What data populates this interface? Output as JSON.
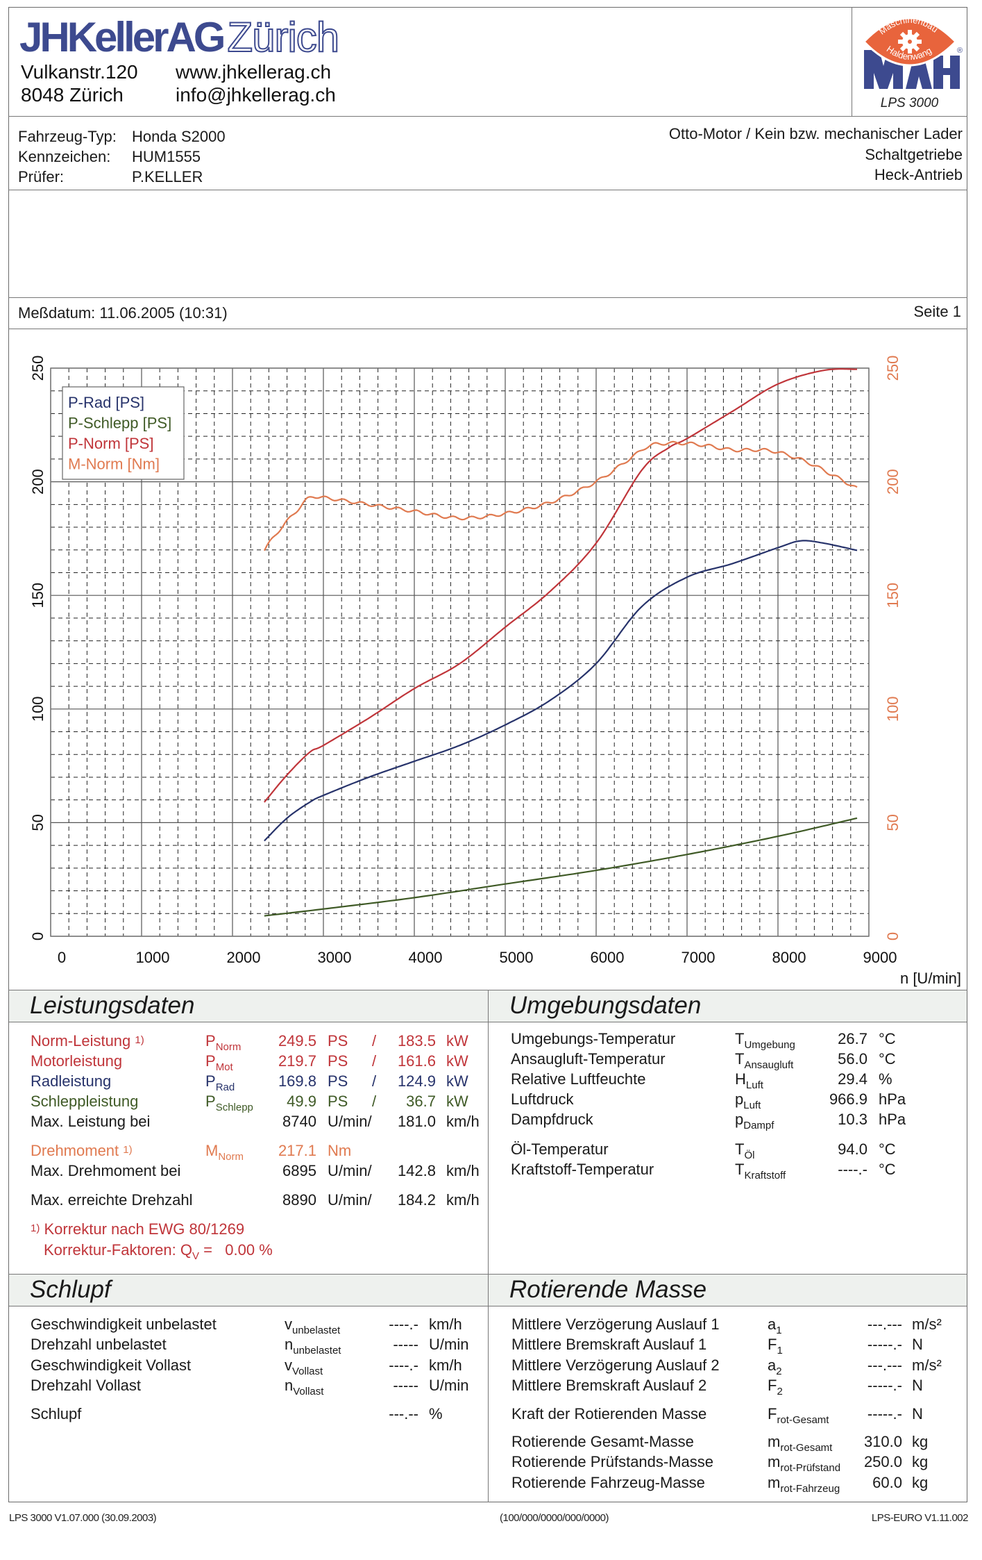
{
  "header": {
    "company_bold": "JHKellerAG",
    "company_outline": "Zürich",
    "street": "Vulkanstr.120",
    "city": "8048 Zürich",
    "website": "www.jhkellerag.ch",
    "email": "info@jhkellerag.ch",
    "maha_ring_top": "Maschinenbau",
    "maha_ring_bottom": "Haldenwang",
    "maha_brand": "MAHA",
    "maha_registered": "®",
    "maha_model": "LPS 3000"
  },
  "vehicle": {
    "type_label": "Fahrzeug-Typ:",
    "type_value": "Honda S2000",
    "plate_label": "Kennzeichen:",
    "plate_value": "HUM1555",
    "examiner_label": "Prüfer:",
    "examiner_value": "P.KELLER",
    "engine": "Otto-Motor / Kein bzw. mechanischer Lader",
    "gearbox": "Schaltgetriebe",
    "drive": "Heck-Antrieb"
  },
  "measurement": {
    "date": "Meßdatum: 11.06.2005 (10:31)",
    "page": "Seite 1"
  },
  "colors": {
    "p_rad": "#27336b",
    "p_schlepp": "#3f5a26",
    "p_norm": "#c0353a",
    "m_norm": "#e07a50",
    "section_bg": "#eef1ee",
    "logo_blue": "#3d4a8f",
    "logo_orange": "#e8643c"
  },
  "chart_data": {
    "type": "line",
    "title": "",
    "xlabel": "n [U/min]",
    "ylabel_left": "PS",
    "ylabel_right": "Nm",
    "xlim": [
      0,
      9000
    ],
    "ylim_left": [
      0,
      250
    ],
    "ylim_right": [
      0,
      250
    ],
    "x_ticks": [
      0,
      1000,
      2000,
      3000,
      4000,
      5000,
      6000,
      7000,
      8000,
      9000
    ],
    "y_ticks_left": [
      0,
      50,
      100,
      150,
      200,
      250
    ],
    "y_ticks_right": [
      0,
      50,
      100,
      150,
      200,
      250
    ],
    "grid": true,
    "legend_position": "top-left",
    "series": [
      {
        "name": "P-Rad [PS]",
        "axis": "left",
        "x": [
          2350,
          2600,
          2850,
          3000,
          3500,
          4000,
          4500,
          5000,
          5500,
          6000,
          6500,
          7000,
          7500,
          8000,
          8250,
          8500,
          8870
        ],
        "values": [
          42,
          52,
          59,
          62,
          70,
          77,
          84,
          93,
          104,
          120,
          145,
          158,
          164,
          171,
          174,
          173,
          169.8
        ]
      },
      {
        "name": "P-Schlepp [PS]",
        "axis": "left",
        "x": [
          2350,
          3000,
          4000,
          5000,
          6000,
          7000,
          8000,
          8870
        ],
        "values": [
          9,
          12,
          17,
          23,
          29,
          36,
          44,
          52
        ]
      },
      {
        "name": "P-Norm [PS]",
        "axis": "left",
        "x": [
          2350,
          2600,
          2850,
          3000,
          3500,
          4000,
          4500,
          5000,
          5500,
          6000,
          6500,
          6800,
          7000,
          7500,
          8000,
          8500,
          8870
        ],
        "values": [
          59,
          71,
          81,
          84,
          96,
          109,
          120,
          136,
          152,
          173,
          205,
          215,
          219,
          231,
          243,
          249,
          249.5
        ]
      },
      {
        "name": "M-Norm [Nm]",
        "axis": "right",
        "x": [
          2350,
          2500,
          2700,
          2850,
          3000,
          3500,
          4000,
          4500,
          5000,
          5500,
          6000,
          6400,
          6600,
          6900,
          7200,
          7500,
          7800,
          8000,
          8300,
          8600,
          8870
        ],
        "values": [
          170,
          178,
          187,
          193,
          193,
          190,
          187,
          184,
          186,
          191,
          200,
          211,
          216,
          217,
          216,
          214,
          214,
          213,
          209,
          203,
          197
        ]
      }
    ]
  },
  "leistungsdaten": {
    "title": "Leistungsdaten",
    "rows": [
      {
        "label": "Norm-Leistung",
        "fn": "1)",
        "sym": "P",
        "sub": "Norm",
        "v1": "249.5",
        "u1": "PS",
        "sep": "/",
        "v2": "183.5",
        "u2": "kW",
        "color": "red"
      },
      {
        "label": "Motorleistung",
        "fn": "",
        "sym": "P",
        "sub": "Mot",
        "v1": "219.7",
        "u1": "PS",
        "sep": "/",
        "v2": "161.6",
        "u2": "kW",
        "color": "red"
      },
      {
        "label": "Radleistung",
        "fn": "",
        "sym": "P",
        "sub": "Rad",
        "v1": "169.8",
        "u1": "PS",
        "sep": "/",
        "v2": "124.9",
        "u2": "kW",
        "color": "blue"
      },
      {
        "label": "Schleppleistung",
        "fn": "",
        "sym": "P",
        "sub": "Schlepp",
        "v1": "49.9",
        "u1": "PS",
        "sep": "/",
        "v2": "36.7",
        "u2": "kW",
        "color": "green"
      },
      {
        "label": "Max. Leistung bei",
        "fn": "",
        "sym": "",
        "sub": "",
        "v1": "8740",
        "u1": "U/min/",
        "sep": "",
        "v2": "181.0",
        "u2": "km/h",
        "color": "black"
      },
      {
        "label": "Drehmoment",
        "fn": "1)",
        "sym": "M",
        "sub": "Norm",
        "v1": "217.1",
        "u1": "Nm",
        "sep": "",
        "v2": "",
        "u2": "",
        "color": "orange"
      },
      {
        "label": "Max. Drehmoment bei",
        "fn": "",
        "sym": "",
        "sub": "",
        "v1": "6895",
        "u1": "U/min/",
        "sep": "",
        "v2": "142.8",
        "u2": "km/h",
        "color": "black"
      },
      {
        "label": "Max. erreichte Drehzahl",
        "fn": "",
        "sym": "",
        "sub": "",
        "v1": "8890",
        "u1": "U/min/",
        "sep": "",
        "v2": "184.2",
        "u2": "km/h",
        "color": "black"
      }
    ],
    "footnote_marker": "1)",
    "footnote_text": "Korrektur nach EWG 80/1269",
    "correction_label": "Korrektur-Faktoren: Q",
    "correction_sub": "V",
    "correction_eq": " =",
    "correction_value": "0.00 %"
  },
  "umgebungsdaten": {
    "title": "Umgebungsdaten",
    "rows": [
      {
        "label": "Umgebungs-Temperatur",
        "sym": "T",
        "sub": "Umgebung",
        "value": "26.7",
        "unit": "°C"
      },
      {
        "label": "Ansaugluft-Temperatur",
        "sym": "T",
        "sub": "Ansaugluft",
        "value": "56.0",
        "unit": "°C"
      },
      {
        "label": "Relative Luftfeuchte",
        "sym": "H",
        "sub": "Luft",
        "value": "29.4",
        "unit": "%"
      },
      {
        "label": "Luftdruck",
        "sym": "p",
        "sub": "Luft",
        "value": "966.9",
        "unit": "hPa"
      },
      {
        "label": "Dampfdruck",
        "sym": "p",
        "sub": "Dampf",
        "value": "10.3",
        "unit": "hPa"
      },
      {
        "label": "Öl-Temperatur",
        "sym": "T",
        "sub": "Öl",
        "value": "94.0",
        "unit": "°C"
      },
      {
        "label": "Kraftstoff-Temperatur",
        "sym": "T",
        "sub": "Kraftstoff",
        "value": "----.-",
        "unit": "°C"
      }
    ]
  },
  "schlupf": {
    "title": "Schlupf",
    "rows": [
      {
        "label": "Geschwindigkeit unbelastet",
        "sym": "v",
        "sub": "unbelastet",
        "value": "----.-",
        "unit": "km/h"
      },
      {
        "label": "Drehzahl unbelastet",
        "sym": "n",
        "sub": "unbelastet",
        "value": "-----",
        "unit": "U/min"
      },
      {
        "label": "Geschwindigkeit Vollast",
        "sym": "v",
        "sub": "Vollast",
        "value": "----.-",
        "unit": "km/h"
      },
      {
        "label": "Drehzahl Vollast",
        "sym": "n",
        "sub": "Vollast",
        "value": "-----",
        "unit": "U/min"
      },
      {
        "label": "Schlupf",
        "sym": "",
        "sub": "",
        "value": "---.--",
        "unit": "%"
      }
    ]
  },
  "rotierende_masse": {
    "title": "Rotierende Masse",
    "rows": [
      {
        "label": "Mittlere Verzögerung Auslauf 1",
        "sym": "a",
        "sub": "1",
        "value": "---.---",
        "unit": "m/s²"
      },
      {
        "label": "Mittlere Bremskraft Auslauf 1",
        "sym": "F",
        "sub": "1",
        "value": "-----.-",
        "unit": "N"
      },
      {
        "label": "Mittlere Verzögerung Auslauf 2",
        "sym": "a",
        "sub": "2",
        "value": "---.---",
        "unit": "m/s²"
      },
      {
        "label": "Mittlere Bremskraft Auslauf 2",
        "sym": "F",
        "sub": "2",
        "value": "-----.-",
        "unit": "N"
      },
      {
        "label": "Kraft der Rotierenden Masse",
        "sym": "F",
        "sub": "rot-Gesamt",
        "value": "-----.-",
        "unit": "N"
      },
      {
        "label": "Rotierende Gesamt-Masse",
        "sym": "m",
        "sub": "rot-Gesamt",
        "value": "310.0",
        "unit": "kg"
      },
      {
        "label": "Rotierende Prüfstands-Masse",
        "sym": "m",
        "sub": "rot-Prüfstand",
        "value": "250.0",
        "unit": "kg"
      },
      {
        "label": "Rotierende Fahrzeug-Masse",
        "sym": "m",
        "sub": "rot-Fahrzeug",
        "value": "60.0",
        "unit": "kg"
      }
    ]
  },
  "footer": {
    "left": "LPS 3000 V1.07.000 (30.09.2003)",
    "center": "(100/000/0000/000/0000)",
    "right": "LPS-EURO V1.11.002"
  }
}
